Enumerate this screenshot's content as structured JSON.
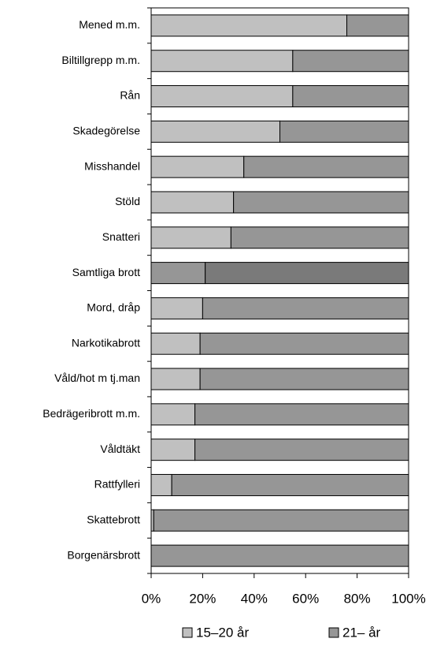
{
  "chart_data": {
    "type": "stacked_barh",
    "categories": [
      "Mened m.m.",
      "Biltillgrepp m.m.",
      "Rån",
      "Skadegörelse",
      "Misshandel",
      "Stöld",
      "Snatteri",
      "Samtliga brott",
      "Mord, dråp",
      "Narkotikabrott",
      "Våld/hot m tj.man",
      "Bedrägeribrott m.m.",
      "Våldtäkt",
      "Rattfylleri",
      "Skattebrott",
      "Borgenärsbrott"
    ],
    "series": [
      {
        "name": "15–20 år",
        "color": "#c0c0c0",
        "values": [
          76,
          55,
          55,
          50,
          36,
          32,
          31,
          21,
          20,
          19,
          19,
          17,
          17,
          8,
          1,
          0
        ]
      },
      {
        "name": "21– år",
        "color": "#969696",
        "values": [
          24,
          45,
          45,
          50,
          64,
          68,
          69,
          79,
          80,
          81,
          81,
          83,
          83,
          92,
          99,
          100
        ]
      }
    ],
    "highlight": {
      "index": 7,
      "colors": [
        "#969696",
        "#7a7a7a"
      ]
    },
    "xlim": [
      0,
      100
    ],
    "xticks": [
      {
        "value": 0,
        "label": "0%"
      },
      {
        "value": 20,
        "label": "20%"
      },
      {
        "value": 40,
        "label": "40%"
      },
      {
        "value": 60,
        "label": "60%"
      },
      {
        "value": 80,
        "label": "80%"
      },
      {
        "value": 100,
        "label": "100%"
      }
    ],
    "legend": "bottom"
  }
}
